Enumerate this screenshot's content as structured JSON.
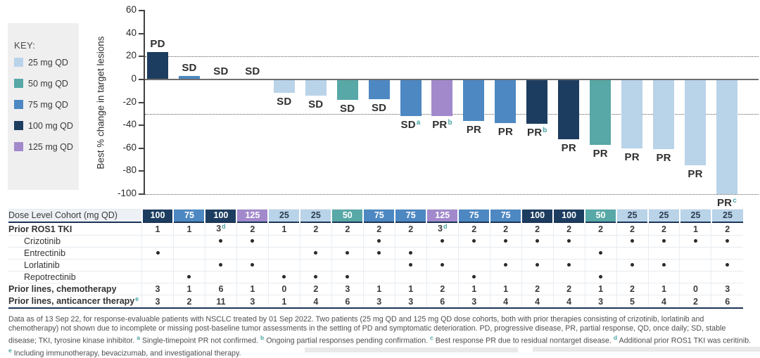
{
  "key": {
    "title": "KEY:",
    "items": [
      {
        "label": "25 mg QD",
        "color": "#b9d3e9"
      },
      {
        "label": "50 mg QD",
        "color": "#57a8a6"
      },
      {
        "label": "75 mg QD",
        "color": "#4d88c2"
      },
      {
        "label": "100 mg QD",
        "color": "#1d3d60"
      },
      {
        "label": "125 mg QD",
        "color": "#a289cc"
      }
    ]
  },
  "cohort_colors": {
    "25": "#b9d3e9",
    "50": "#57a8a6",
    "75": "#4d88c2",
    "100": "#1d3d60",
    "125": "#a289cc"
  },
  "accent_superscript_color": "#4ba3a3",
  "chart_data": {
    "type": "bar",
    "title": "",
    "ylabel": "Best % change in target lesions",
    "ylim": [
      -100,
      60
    ],
    "yticks": [
      60,
      40,
      20,
      0,
      -20,
      -40,
      -60,
      -80,
      -100
    ],
    "reference_lines": [
      20,
      -30,
      -100
    ],
    "grid": "dotted reference lines at +20, -30 and -100; solid baseline at 0",
    "legend_position": "left panel",
    "categories": [
      "100",
      "75",
      "100",
      "125",
      "25",
      "25",
      "50",
      "75",
      "75",
      "125",
      "75",
      "75",
      "100",
      "100",
      "50",
      "25",
      "25",
      "25",
      "25"
    ],
    "bars": [
      {
        "cohort_mg_qd": "100",
        "value_pct": 24,
        "response": "PD",
        "footnote_sup": ""
      },
      {
        "cohort_mg_qd": "75",
        "value_pct": 3,
        "response": "SD",
        "footnote_sup": ""
      },
      {
        "cohort_mg_qd": "100",
        "value_pct": 0,
        "response": "SD",
        "footnote_sup": ""
      },
      {
        "cohort_mg_qd": "125",
        "value_pct": 0,
        "response": "SD",
        "footnote_sup": ""
      },
      {
        "cohort_mg_qd": "25",
        "value_pct": -12,
        "response": "SD",
        "footnote_sup": ""
      },
      {
        "cohort_mg_qd": "25",
        "value_pct": -14,
        "response": "SD",
        "footnote_sup": ""
      },
      {
        "cohort_mg_qd": "50",
        "value_pct": -18,
        "response": "SD",
        "footnote_sup": ""
      },
      {
        "cohort_mg_qd": "75",
        "value_pct": -17,
        "response": "SD",
        "footnote_sup": ""
      },
      {
        "cohort_mg_qd": "75",
        "value_pct": -32,
        "response": "SD",
        "footnote_sup": "a"
      },
      {
        "cohort_mg_qd": "125",
        "value_pct": -32,
        "response": "PR",
        "footnote_sup": "b"
      },
      {
        "cohort_mg_qd": "75",
        "value_pct": -36,
        "response": "PR",
        "footnote_sup": ""
      },
      {
        "cohort_mg_qd": "75",
        "value_pct": -38,
        "response": "PR",
        "footnote_sup": ""
      },
      {
        "cohort_mg_qd": "100",
        "value_pct": -39,
        "response": "PR",
        "footnote_sup": "b"
      },
      {
        "cohort_mg_qd": "100",
        "value_pct": -52,
        "response": "PR",
        "footnote_sup": ""
      },
      {
        "cohort_mg_qd": "50",
        "value_pct": -57,
        "response": "PR",
        "footnote_sup": ""
      },
      {
        "cohort_mg_qd": "25",
        "value_pct": -60,
        "response": "PR",
        "footnote_sup": ""
      },
      {
        "cohort_mg_qd": "25",
        "value_pct": -61,
        "response": "PR",
        "footnote_sup": ""
      },
      {
        "cohort_mg_qd": "25",
        "value_pct": -75,
        "response": "PR",
        "footnote_sup": ""
      },
      {
        "cohort_mg_qd": "25",
        "value_pct": -100,
        "response": "PR",
        "footnote_sup": "c"
      }
    ]
  },
  "table": {
    "header": {
      "label": "Dose Level Cohort (mg QD)",
      "values": [
        "100",
        "75",
        "100",
        "125",
        "25",
        "25",
        "50",
        "75",
        "75",
        "125",
        "75",
        "75",
        "100",
        "100",
        "50",
        "25",
        "25",
        "25",
        "25"
      ]
    },
    "rows": [
      {
        "label": "Prior ROS1 TKI",
        "style": "bold",
        "values": [
          "1",
          "1",
          "3^d",
          "2",
          "1",
          "2",
          "2",
          "2",
          "2",
          "3^d",
          "2",
          "2",
          "2",
          "2",
          "2",
          "2",
          "2",
          "1",
          "2"
        ]
      },
      {
        "label": "Crizotinib",
        "style": "indent",
        "dots": [
          3,
          4,
          8,
          10,
          11,
          12,
          13,
          14,
          16,
          17,
          18,
          19
        ]
      },
      {
        "label": "Entrectinib",
        "style": "indent",
        "dots": [
          1,
          6,
          7,
          8,
          9,
          15
        ]
      },
      {
        "label": "Lorlatinib",
        "style": "indent",
        "dots": [
          3,
          4,
          9,
          10,
          12,
          13,
          14,
          16,
          17,
          19
        ]
      },
      {
        "label": "Repotrectinib",
        "style": "indent",
        "dots": [
          2,
          5,
          6,
          7,
          11,
          15
        ]
      },
      {
        "label": "Prior lines, chemotherapy",
        "style": "bold",
        "values": [
          "3",
          "1",
          "6",
          "1",
          "0",
          "2",
          "3",
          "1",
          "1",
          "2",
          "1",
          "1",
          "2",
          "2",
          "1",
          "2",
          "1",
          "0",
          "3"
        ]
      },
      {
        "label": "Prior lines, anticancer therapy",
        "label_sup": "e",
        "style": "bold",
        "values": [
          "3",
          "2",
          "11",
          "3",
          "1",
          "4",
          "6",
          "3",
          "3",
          "6",
          "3",
          "4",
          "4",
          "4",
          "3",
          "5",
          "4",
          "2",
          "6"
        ]
      }
    ]
  },
  "footnote": {
    "segments": [
      {
        "text": "Data as of 13 Sep 22, for response-evaluable patients with NSCLC treated by 01 Sep 2022. Two patients (25 mg QD and 125 mg QD dose cohorts, both with prior therapies consisting of crizotinib, lorlatinib and chemotherapy) not shown due to incomplete or missing post-baseline tumor assessments in the setting of PD and symptomatic deterioration. PD, progressive disease, PR, partial response, QD, once daily; SD, stable disease; TKI, tyrosine kinase inhibitor. "
      },
      {
        "sup": "a"
      },
      {
        "text": " Single-timepoint PR not confirmed. "
      },
      {
        "sup": "b"
      },
      {
        "text": " Ongoing partial responses pending confirmation. "
      },
      {
        "sup": "c"
      },
      {
        "text": " Best response PR due to residual nontarget disease. "
      },
      {
        "sup": "d"
      },
      {
        "text": " Additional prior ROS1 TKI was ceritinib. "
      },
      {
        "sup": "e"
      },
      {
        "text": " Including immunotherapy, bevacizumab, and investigational therapy."
      }
    ]
  }
}
